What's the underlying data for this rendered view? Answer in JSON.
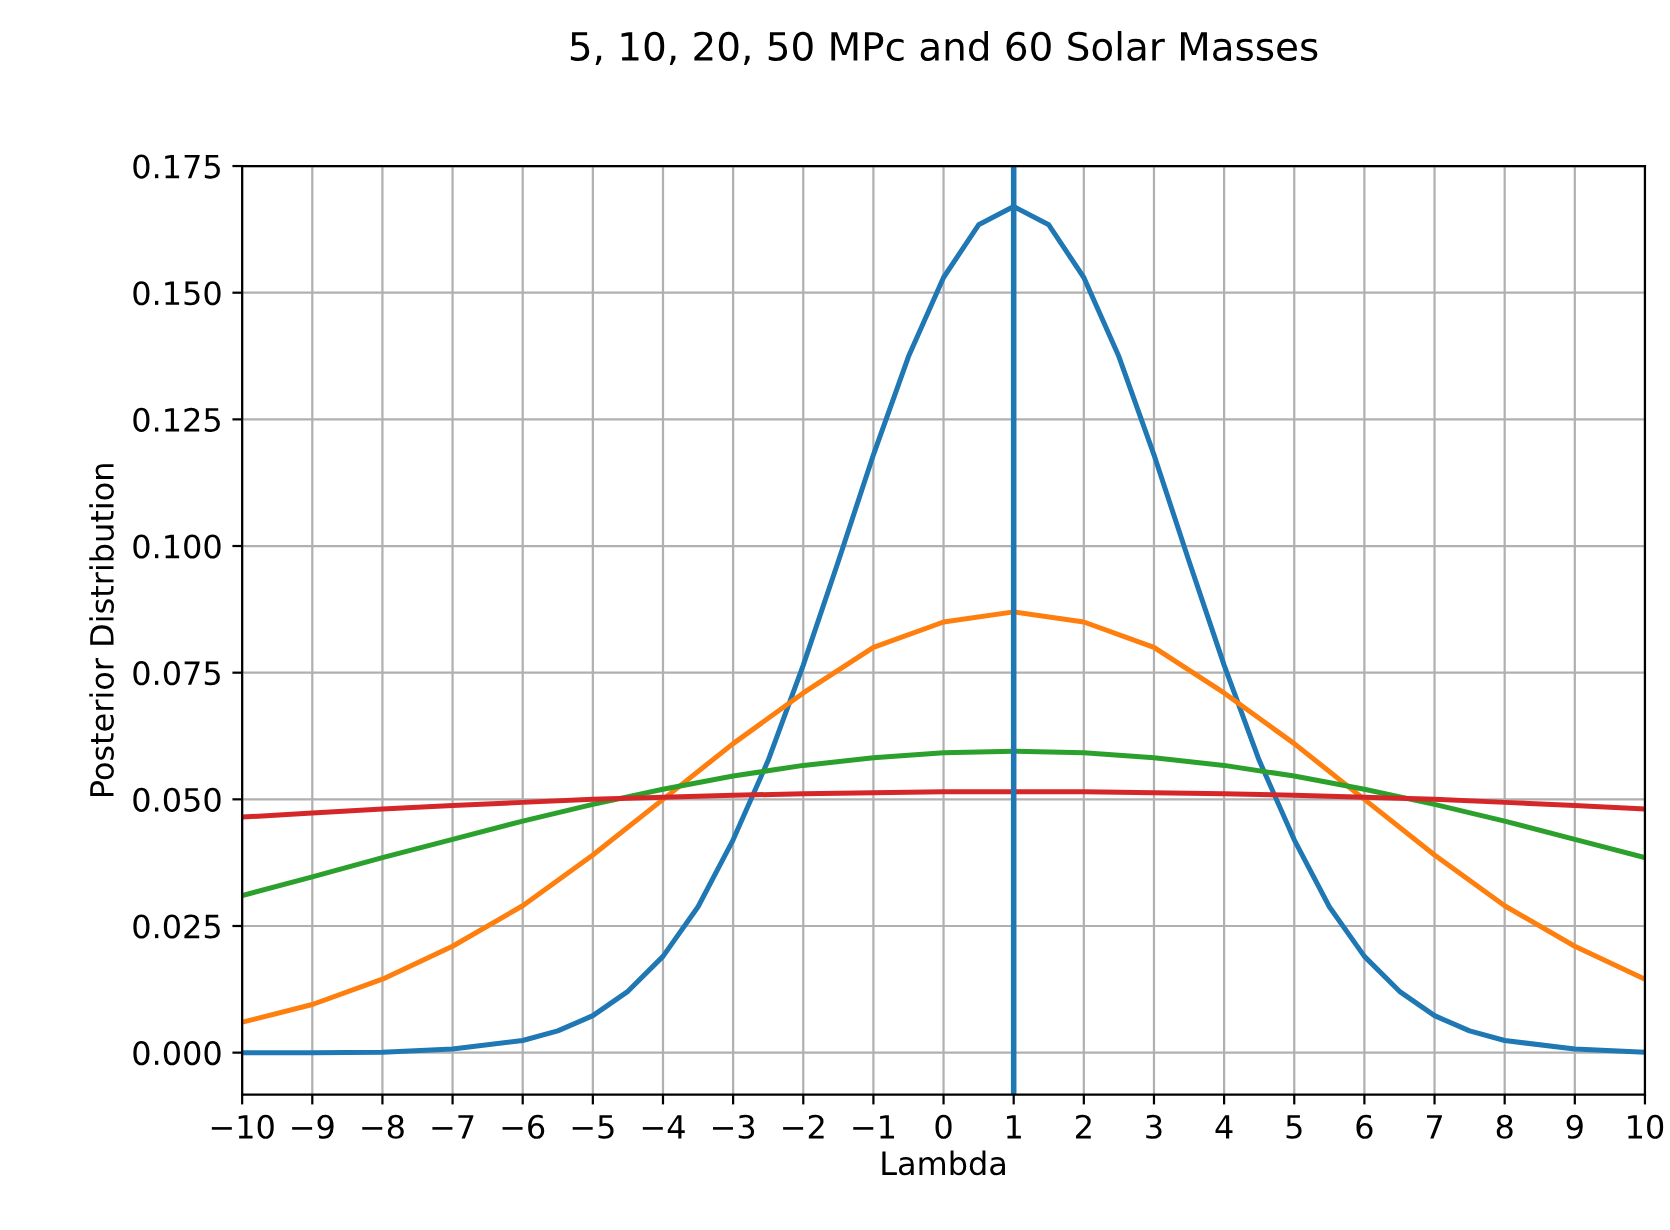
{
  "chart_data": {
    "type": "line",
    "title": "5, 10, 20, 50 MPc and 60 Solar Masses",
    "xlabel": "Lambda",
    "ylabel": "Posterior Distribution",
    "xlim": [
      -10,
      10
    ],
    "xticks": [
      -10,
      -9,
      -8,
      -7,
      -6,
      -5,
      -4,
      -3,
      -2,
      -1,
      0,
      1,
      2,
      3,
      4,
      5,
      6,
      7,
      8,
      9,
      10
    ],
    "ylim": [
      -0.0083,
      0.175
    ],
    "yticks": [
      {
        "value": 0,
        "label": "0.000"
      },
      {
        "value": 0.025,
        "label": "0.025"
      },
      {
        "value": 0.05,
        "label": "0.050"
      },
      {
        "value": 0.075,
        "label": "0.075"
      },
      {
        "value": 0.1,
        "label": "0.100"
      },
      {
        "value": 0.125,
        "label": "0.125"
      },
      {
        "value": 0.15,
        "label": "0.150"
      },
      {
        "value": 0.175,
        "label": "0.175"
      }
    ],
    "grid": true,
    "line_style": "solid",
    "ref_lines": [
      {
        "axis": "x",
        "value": 1,
        "color": "#1f77b4"
      }
    ],
    "series": [
      {
        "color": "#1f77b4",
        "x": [
          -10,
          -9,
          -8,
          -7,
          -6,
          -5.5,
          -5,
          -4.5,
          -4,
          -3.5,
          -3,
          -2.5,
          -2,
          -1.5,
          -1,
          -0.5,
          0,
          0.5,
          1,
          1.5,
          2,
          2.5,
          3,
          3.5,
          4,
          4.5,
          5,
          5.5,
          6,
          6.5,
          7,
          7.5,
          8,
          9,
          10
        ],
        "values": [
          0,
          0,
          0.0001,
          0.0007,
          0.0024,
          0.0043,
          0.0073,
          0.0121,
          0.019,
          0.0288,
          0.042,
          0.0577,
          0.0765,
          0.097,
          0.118,
          0.1374,
          0.153,
          0.1634,
          0.167,
          0.1634,
          0.153,
          0.1374,
          0.118,
          0.097,
          0.0765,
          0.0577,
          0.042,
          0.0288,
          0.019,
          0.0121,
          0.0073,
          0.0043,
          0.0024,
          0.0007,
          0.0001
        ]
      },
      {
        "color": "#ff7f0e",
        "x": [
          -10,
          -9,
          -8,
          -7,
          -6,
          -5,
          -4,
          -3,
          -2,
          -1,
          0,
          1,
          2,
          3,
          4,
          5,
          6,
          7,
          8,
          9,
          10
        ],
        "values": [
          0.006,
          0.0095,
          0.0145,
          0.021,
          0.029,
          0.039,
          0.05,
          0.061,
          0.071,
          0.08,
          0.085,
          0.087,
          0.085,
          0.08,
          0.071,
          0.061,
          0.05,
          0.039,
          0.029,
          0.021,
          0.0145
        ]
      },
      {
        "color": "#2ca02c",
        "x": [
          -10,
          -9,
          -8,
          -7,
          -6,
          -5,
          -4,
          -3,
          -2,
          -1,
          0,
          1,
          2,
          3,
          4,
          5,
          6,
          7,
          8,
          9,
          10
        ],
        "values": [
          0.031,
          0.0347,
          0.0385,
          0.0421,
          0.0457,
          0.049,
          0.052,
          0.0546,
          0.0567,
          0.0582,
          0.0592,
          0.0595,
          0.0592,
          0.0582,
          0.0567,
          0.0546,
          0.052,
          0.049,
          0.0457,
          0.0421,
          0.0385
        ]
      },
      {
        "color": "#d62728",
        "x": [
          -10,
          -9,
          -8,
          -7,
          -6,
          -5,
          -4,
          -3,
          -2,
          -1,
          0,
          1,
          2,
          3,
          4,
          5,
          6,
          7,
          8,
          9,
          10
        ],
        "values": [
          0.0465,
          0.0473,
          0.0481,
          0.0488,
          0.0494,
          0.05,
          0.0504,
          0.0508,
          0.0511,
          0.0513,
          0.0515,
          0.0515,
          0.0515,
          0.0513,
          0.0511,
          0.0508,
          0.0504,
          0.05,
          0.0494,
          0.0488,
          0.0481
        ]
      }
    ]
  }
}
